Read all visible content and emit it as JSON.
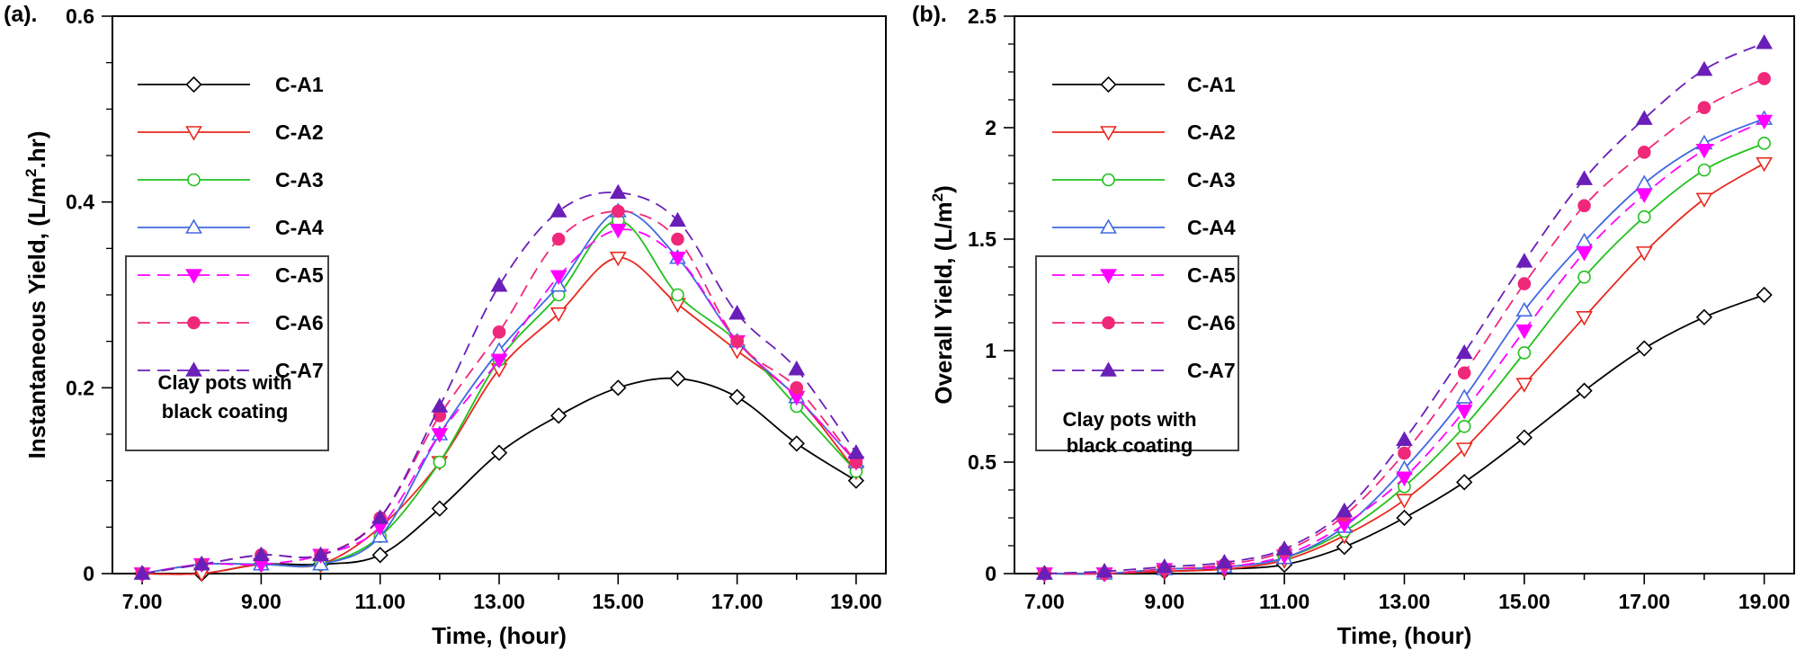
{
  "chart_data": [
    {
      "type": "line",
      "panel_label": "(a).",
      "xlabel": "Time, (hour)",
      "ylabel_main": "Instantaneous Yield, (L/m",
      "ylabel_sup": "2",
      "ylabel_tail": ".hr)",
      "xlim": [
        6.5,
        19.5
      ],
      "ylim": [
        0,
        0.6
      ],
      "xticks": [
        7,
        9,
        11,
        13,
        15,
        17,
        19
      ],
      "xtick_labels": [
        "7.00",
        "9.00",
        "11.00",
        "13.00",
        "15.00",
        "17.00",
        "19.00"
      ],
      "yticks": [
        0,
        0.2,
        0.4,
        0.6
      ],
      "ytick_labels": [
        "0",
        "0.2",
        "0.4",
        "0.6"
      ],
      "note": [
        "Clay pots with",
        "black coating"
      ],
      "x": [
        7,
        8,
        9,
        10,
        11,
        12,
        13,
        14,
        15,
        16,
        17,
        18,
        19
      ],
      "series": [
        {
          "name": "C-A1",
          "color": "#000000",
          "marker": "diamond",
          "dashed": false,
          "values": [
            0,
            0,
            0.01,
            0.01,
            0.02,
            0.07,
            0.13,
            0.17,
            0.2,
            0.21,
            0.19,
            0.14,
            0.1
          ]
        },
        {
          "name": "C-A2",
          "color": "#e8281e",
          "marker": "tri-down-open",
          "dashed": false,
          "values": [
            0,
            0,
            0.01,
            0.01,
            0.05,
            0.12,
            0.22,
            0.28,
            0.34,
            0.29,
            0.24,
            0.19,
            0.11
          ]
        },
        {
          "name": "C-A3",
          "color": "#22c11e",
          "marker": "circle-open",
          "dashed": false,
          "values": [
            0,
            0.01,
            0.01,
            0.01,
            0.04,
            0.12,
            0.23,
            0.3,
            0.38,
            0.3,
            0.25,
            0.18,
            0.11
          ]
        },
        {
          "name": "C-A4",
          "color": "#4169e1",
          "marker": "tri-up-open",
          "dashed": false,
          "values": [
            0,
            0.01,
            0.01,
            0.01,
            0.04,
            0.15,
            0.24,
            0.31,
            0.39,
            0.34,
            0.25,
            0.19,
            0.12
          ]
        },
        {
          "name": "C-A5",
          "color": "#ff00ff",
          "marker": "tri-down-filled",
          "dashed": true,
          "values": [
            0,
            0.01,
            0.01,
            0.02,
            0.05,
            0.15,
            0.23,
            0.32,
            0.37,
            0.34,
            0.25,
            0.19,
            0.12
          ]
        },
        {
          "name": "C-A6",
          "color": "#f0287a",
          "marker": "circle-filled",
          "dashed": true,
          "values": [
            0,
            0.01,
            0.02,
            0.02,
            0.06,
            0.17,
            0.26,
            0.36,
            0.39,
            0.36,
            0.25,
            0.2,
            0.12
          ]
        },
        {
          "name": "C-A7",
          "color": "#6a1fb8",
          "marker": "tri-up-filled",
          "dashed": true,
          "values": [
            0,
            0.01,
            0.02,
            0.02,
            0.06,
            0.18,
            0.31,
            0.39,
            0.41,
            0.38,
            0.28,
            0.22,
            0.13
          ]
        }
      ]
    },
    {
      "type": "line",
      "panel_label": "(b).",
      "xlabel": "Time, (hour)",
      "ylabel_main": "Overall Yield, (L/m",
      "ylabel_sup": "2",
      "ylabel_tail": ")",
      "xlim": [
        6.5,
        19.5
      ],
      "ylim": [
        0,
        2.5
      ],
      "xticks": [
        7,
        9,
        11,
        13,
        15,
        17,
        19
      ],
      "xtick_labels": [
        "7.00",
        "9.00",
        "11.00",
        "13.00",
        "15.00",
        "17.00",
        "19.00"
      ],
      "yticks": [
        0,
        0.5,
        1,
        1.5,
        2,
        2.5
      ],
      "ytick_labels": [
        "0",
        "0.5",
        "1",
        "1.5",
        "2",
        "2.5"
      ],
      "note": [
        "Clay  pots with",
        "black coating"
      ],
      "x": [
        7,
        8,
        9,
        10,
        11,
        12,
        13,
        14,
        15,
        16,
        17,
        18,
        19
      ],
      "series": [
        {
          "name": "C-A1",
          "color": "#000000",
          "marker": "diamond",
          "dashed": false,
          "values": [
            0,
            0,
            0.01,
            0.02,
            0.04,
            0.12,
            0.25,
            0.41,
            0.61,
            0.82,
            1.01,
            1.15,
            1.25
          ]
        },
        {
          "name": "C-A2",
          "color": "#e8281e",
          "marker": "tri-down-open",
          "dashed": false,
          "values": [
            0,
            0,
            0.01,
            0.02,
            0.06,
            0.17,
            0.33,
            0.56,
            0.85,
            1.15,
            1.44,
            1.68,
            1.84
          ]
        },
        {
          "name": "C-A3",
          "color": "#22c11e",
          "marker": "circle-open",
          "dashed": false,
          "values": [
            0,
            0,
            0.02,
            0.03,
            0.07,
            0.19,
            0.39,
            0.66,
            0.99,
            1.33,
            1.6,
            1.81,
            1.93
          ]
        },
        {
          "name": "C-A4",
          "color": "#4169e1",
          "marker": "tri-up-open",
          "dashed": false,
          "values": [
            0,
            0,
            0.02,
            0.03,
            0.07,
            0.21,
            0.47,
            0.79,
            1.18,
            1.49,
            1.75,
            1.93,
            2.04
          ]
        },
        {
          "name": "C-A5",
          "color": "#ff00ff",
          "marker": "tri-down-filled",
          "dashed": true,
          "values": [
            0,
            0,
            0.02,
            0.03,
            0.08,
            0.22,
            0.43,
            0.73,
            1.09,
            1.44,
            1.7,
            1.9,
            2.03
          ]
        },
        {
          "name": "C-A6",
          "color": "#f0287a",
          "marker": "circle-filled",
          "dashed": true,
          "values": [
            0,
            0,
            0.02,
            0.04,
            0.1,
            0.26,
            0.54,
            0.9,
            1.3,
            1.65,
            1.89,
            2.09,
            2.22
          ]
        },
        {
          "name": "C-A7",
          "color": "#6a1fb8",
          "marker": "tri-up-filled",
          "dashed": true,
          "values": [
            0,
            0.01,
            0.03,
            0.05,
            0.11,
            0.28,
            0.6,
            0.99,
            1.4,
            1.77,
            2.04,
            2.26,
            2.38
          ]
        }
      ]
    }
  ]
}
